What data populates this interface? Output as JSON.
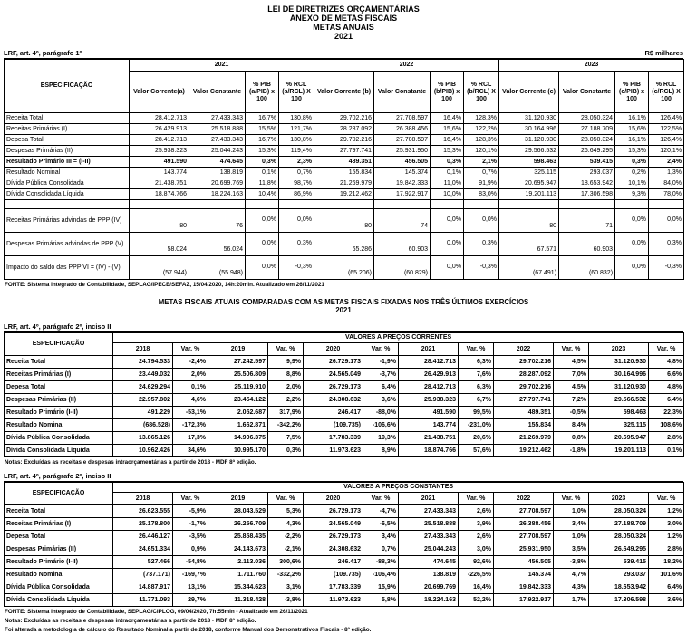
{
  "colors": {
    "text": "#000000",
    "background": "#ffffff",
    "border": "#000000"
  },
  "header": {
    "title1": "LEI DE DIRETRIZES ORÇAMENTÁRIAS",
    "title2": "ANEXO DE METAS FISCAIS",
    "title3": "METAS ANUAIS",
    "year": "2021"
  },
  "table1": {
    "lrf_label": "LRF, art. 4º, parágrafo 1º",
    "currency_label": "R$ milhares",
    "spec_header": "ESPECIFICAÇÃO",
    "year_groups": [
      {
        "year": "2021",
        "cols": [
          "Valor Corrente(a)",
          "Valor Constante",
          "% PIB (a/PIB) x 100",
          "% RCL (a/RCL) X 100"
        ]
      },
      {
        "year": "2022",
        "cols": [
          "Valor Corrente (b)",
          "Valor Constante",
          "% PIB (b/PIB) x 100",
          "% RCL (b/RCL) X 100"
        ]
      },
      {
        "year": "2023",
        "cols": [
          "Valor Corrente (c)",
          "Valor Constante",
          "% PIB (c/PIB) x 100",
          "% RCL (c/RCL) X 100"
        ]
      }
    ],
    "rows": [
      {
        "label": "Receita Total",
        "bold": false,
        "values": [
          "28.412.713",
          "27.433.343",
          "16,7%",
          "130,8%",
          "29.702.216",
          "27.708.597",
          "16,4%",
          "128,3%",
          "31.120.930",
          "28.050.324",
          "16,1%",
          "126,4%"
        ]
      },
      {
        "label": "Receitas Primárias (I)",
        "bold": false,
        "values": [
          "26.429.913",
          "25.518.888",
          "15,5%",
          "121,7%",
          "28.287.092",
          "26.388.456",
          "15,6%",
          "122,2%",
          "30.164.996",
          "27.188.709",
          "15,6%",
          "122,5%"
        ]
      },
      {
        "label": "Depesa Total",
        "bold": false,
        "values": [
          "28.412.713",
          "27.433.343",
          "16,7%",
          "130,8%",
          "29.702.216",
          "27.708.597",
          "16,4%",
          "128,3%",
          "31.120.930",
          "28.050.324",
          "16,1%",
          "126,4%"
        ]
      },
      {
        "label": "Despesas Primárias (II)",
        "bold": false,
        "values": [
          "25.938.323",
          "25.044.243",
          "15,3%",
          "119,4%",
          "27.797.741",
          "25.931.950",
          "15,3%",
          "120,1%",
          "29.566.532",
          "26.649.295",
          "15,3%",
          "120,1%"
        ]
      },
      {
        "label": "Resultado Primário III = (I-II)",
        "bold": true,
        "values": [
          "491.590",
          "474.645",
          "0,3%",
          "2,3%",
          "489.351",
          "456.505",
          "0,3%",
          "2,1%",
          "598.463",
          "539.415",
          "0,3%",
          "2,4%"
        ]
      },
      {
        "label": "Resultado Nominal",
        "bold": false,
        "values": [
          "143.774",
          "138.819",
          "0,1%",
          "0,7%",
          "155.834",
          "145.374",
          "0,1%",
          "0,7%",
          "325.115",
          "293.037",
          "0,2%",
          "1,3%"
        ]
      },
      {
        "label": "Dívida Pública Consolidada",
        "bold": false,
        "values": [
          "21.438.751",
          "20.699.769",
          "11,8%",
          "98,7%",
          "21.269.979",
          "19.842.333",
          "11,0%",
          "91,9%",
          "20.695.947",
          "18.653.942",
          "10,1%",
          "84,0%"
        ]
      },
      {
        "label": "Dívida Consolidada Líquida",
        "bold": false,
        "values": [
          "18.874.766",
          "18.224.163",
          "10,4%",
          "86,9%",
          "19.212.462",
          "17.922.917",
          "10,0%",
          "83,0%",
          "19.201.113",
          "17.306.598",
          "9,3%",
          "78,0%"
        ]
      }
    ],
    "ppp_rows": [
      {
        "label": "Receitas Primárias advindas de PPP (IV)",
        "bold": false,
        "values": [
          "80",
          "76",
          "0,0%",
          "0,0%",
          "80",
          "74",
          "0,0%",
          "0,0%",
          "80",
          "71",
          "0,0%",
          "0,0%"
        ]
      },
      {
        "label": "Despesas Primárias advindas de PPP (V)",
        "bold": false,
        "values": [
          "58.024",
          "56.024",
          "0,0%",
          "0,3%",
          "65.286",
          "60.903",
          "0,0%",
          "0,3%",
          "67.571",
          "60.903",
          "0,0%",
          "0,3%"
        ]
      },
      {
        "label": "Impacto do saldo das PPP VI = (IV) - (V)",
        "bold": false,
        "values": [
          "(57.944)",
          "(55.948)",
          "0,0%",
          "-0,3%",
          "(65.206)",
          "(60.829)",
          "0,0%",
          "-0,3%",
          "(67.491)",
          "(60.832)",
          "0,0%",
          "-0,3%"
        ]
      }
    ],
    "fonte": "FONTE: Sistema Integrado de Contabilidade, SEPLAG/IPECE/SEFAZ, 15/04/2020, 14h:20min. Atualizado em 26/11/2021"
  },
  "section2": {
    "title": "METAS FISCAIS ATUAIS COMPARADAS COM AS METAS FISCAIS FIXADAS NOS TRÊS ÚLTIMOS EXERCÍCIOS",
    "year": "2021"
  },
  "table2": {
    "lrf_label": "LRF, art. 4º, parágrafo 2º, inciso II",
    "banner": "VALORES A PREÇOS CORRENTES",
    "spec_header": "ESPECIFICAÇÃO",
    "col_headers": [
      "2018",
      "Var. %",
      "2019",
      "Var. %",
      "2020",
      "Var. %",
      "2021",
      "Var. %",
      "2022",
      "Var. %",
      "2023",
      "Var. %"
    ],
    "rows": [
      {
        "label": "Receita Total",
        "values": [
          "24.794.533",
          "-2,4%",
          "27.242.597",
          "9,9%",
          "26.729.173",
          "-1,9%",
          "28.412.713",
          "6,3%",
          "29.702.216",
          "4,5%",
          "31.120.930",
          "4,8%"
        ]
      },
      {
        "label": "Receitas Primárias (I)",
        "values": [
          "23.449.032",
          "2,0%",
          "25.506.809",
          "8,8%",
          "24.565.049",
          "-3,7%",
          "26.429.913",
          "7,6%",
          "28.287.092",
          "7,0%",
          "30.164.996",
          "6,6%"
        ]
      },
      {
        "label": "Depesa Total",
        "values": [
          "24.629.294",
          "0,1%",
          "25.119.910",
          "2,0%",
          "26.729.173",
          "6,4%",
          "28.412.713",
          "6,3%",
          "29.702.216",
          "4,5%",
          "31.120.930",
          "4,8%"
        ]
      },
      {
        "label": "Despesas Primárias (II)",
        "values": [
          "22.957.802",
          "4,6%",
          "23.454.122",
          "2,2%",
          "24.308.632",
          "3,6%",
          "25.938.323",
          "6,7%",
          "27.797.741",
          "7,2%",
          "29.566.532",
          "6,4%"
        ]
      },
      {
        "label": "Resultado Primário (I-II)",
        "values": [
          "491.229",
          "-53,1%",
          "2.052.687",
          "317,9%",
          "246.417",
          "-88,0%",
          "491.590",
          "99,5%",
          "489.351",
          "-0,5%",
          "598.463",
          "22,3%"
        ]
      },
      {
        "label": "Resultado Nominal",
        "values": [
          "(686.528)",
          "-172,3%",
          "1.662.871",
          "-342,2%",
          "(109.735)",
          "-106,6%",
          "143.774",
          "-231,0%",
          "155.834",
          "8,4%",
          "325.115",
          "108,6%"
        ]
      },
      {
        "label": "Dívida Pública Consolidada",
        "values": [
          "13.865.126",
          "17,3%",
          "14.906.375",
          "7,5%",
          "17.783.339",
          "19,3%",
          "21.438.751",
          "20,6%",
          "21.269.979",
          "0,8%",
          "20.695.947",
          "2,8%"
        ]
      },
      {
        "label": "Dívida Consolidada Líquida",
        "values": [
          "10.962.426",
          "34,6%",
          "10.995.170",
          "0,3%",
          "11.973.623",
          "8,9%",
          "18.874.766",
          "57,6%",
          "19.212.462",
          "-1,8%",
          "19.201.113",
          "0,1%"
        ]
      }
    ],
    "note": "Notas: Excluídas as receitas e despesas intraorçamentárias a partir de 2018 - MDF 8ª edição."
  },
  "table3": {
    "lrf_label": "LRF, art. 4º, parágrafo 2º, inciso II",
    "banner": "VALORES A PREÇOS CONSTANTES",
    "spec_header": "ESPECIFICAÇÃO",
    "col_headers": [
      "2018",
      "Var. %",
      "2019",
      "Var. %",
      "2020",
      "Var. %",
      "2021",
      "Var. %",
      "2022",
      "Var. %",
      "2023",
      "Var. %"
    ],
    "rows": [
      {
        "label": "Receita Total",
        "values": [
          "26.623.555",
          "-5,9%",
          "28.043.529",
          "5,3%",
          "26.729.173",
          "-4,7%",
          "27.433.343",
          "2,6%",
          "27.708.597",
          "1,0%",
          "28.050.324",
          "1,2%"
        ]
      },
      {
        "label": "Receitas Primárias (I)",
        "values": [
          "25.178.800",
          "-1,7%",
          "26.256.709",
          "4,3%",
          "24.565.049",
          "-6,5%",
          "25.518.888",
          "3,9%",
          "26.388.456",
          "3,4%",
          "27.188.709",
          "3,0%"
        ]
      },
      {
        "label": "Depesa Total",
        "values": [
          "26.446.127",
          "-3,5%",
          "25.858.435",
          "-2,2%",
          "26.729.173",
          "3,4%",
          "27.433.343",
          "2,6%",
          "27.708.597",
          "1,0%",
          "28.050.324",
          "1,2%"
        ]
      },
      {
        "label": "Despesas Primárias (II)",
        "values": [
          "24.651.334",
          "0,9%",
          "24.143.673",
          "-2,1%",
          "24.308.632",
          "0,7%",
          "25.044.243",
          "3,0%",
          "25.931.950",
          "3,5%",
          "26.649.295",
          "2,8%"
        ]
      },
      {
        "label": "Resultado Primário (I-II)",
        "values": [
          "527.466",
          "-54,8%",
          "2.113.036",
          "300,6%",
          "246.417",
          "-88,3%",
          "474.645",
          "92,6%",
          "456.505",
          "-3,8%",
          "539.415",
          "18,2%"
        ]
      },
      {
        "label": "Resultado Nominal",
        "values": [
          "(737.171)",
          "-169,7%",
          "1.711.760",
          "-332,2%",
          "(109.735)",
          "-106,4%",
          "138.819",
          "-226,5%",
          "145.374",
          "4,7%",
          "293.037",
          "101,6%"
        ]
      },
      {
        "label": "Dívida Pública Consolidada",
        "values": [
          "14.887.917",
          "13,1%",
          "15.344.623",
          "3,1%",
          "17.783.339",
          "15,9%",
          "20.699.769",
          "16,4%",
          "19.842.333",
          "4,3%",
          "18.653.942",
          "6,4%"
        ]
      },
      {
        "label": "Dívida Consolidada Líquida",
        "values": [
          "11.771.093",
          "29,7%",
          "11.318.428",
          "-3,8%",
          "11.973.623",
          "5,8%",
          "18.224.163",
          "52,2%",
          "17.922.917",
          "1,7%",
          "17.306.598",
          "3,6%"
        ]
      }
    ],
    "fonte": "FONTE: Sistema Integrado de Contabilidade, SEPLAG/CIPLOG, 09/04/2020, 7h:55min - Atualizado em 26/11/2021",
    "note1": "Notas: Excluídas as receitas e despesas intraorçamentárias a partir de 2018 - MDF 8ª edição.",
    "note2": "Foi alterada a metodologia de cálculo do Resultado Nominal a partir de 2018, conforme Manual dos Demonstrativos Fiscais - 8ª edição."
  }
}
